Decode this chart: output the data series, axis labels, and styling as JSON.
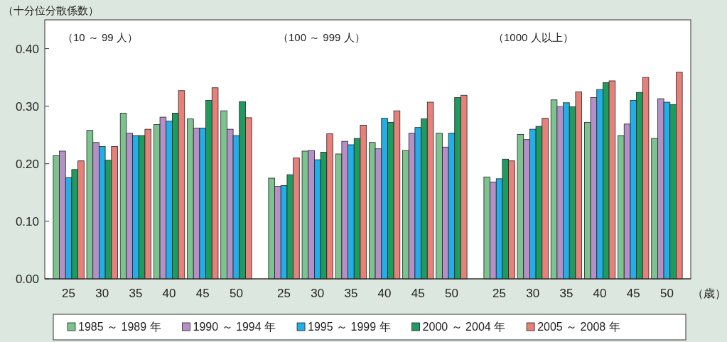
{
  "chart_data": [
    {
      "type": "bar",
      "title": "（10 ～ 99 人）",
      "ylabel": "（十分位分散係数）",
      "categories": [
        "25",
        "30",
        "35",
        "40",
        "45",
        "50"
      ],
      "ylim": [
        0,
        0.45
      ],
      "yticks": [
        {
          "value": 0,
          "label": "0.00"
        },
        {
          "value": 0.1,
          "label": "0.10"
        },
        {
          "value": 0.2,
          "label": "0.20"
        },
        {
          "value": 0.3,
          "label": "0.30"
        },
        {
          "value": 0.4,
          "label": "0.40"
        }
      ],
      "legend": "bottom",
      "series": [
        {
          "name": "1985 ～ 1989 年",
          "color": "#7cc38f",
          "values": [
            0.214,
            0.258,
            0.288,
            0.268,
            0.278,
            0.292
          ]
        },
        {
          "name": "1990 ～ 1994 年",
          "color": "#b68fc9",
          "values": [
            0.222,
            0.237,
            0.253,
            0.281,
            0.262,
            0.26
          ]
        },
        {
          "name": "1995 ～ 1999 年",
          "color": "#22aee6",
          "values": [
            0.176,
            0.23,
            0.249,
            0.274,
            0.262,
            0.249
          ]
        },
        {
          "name": "2000 ～ 2004 年",
          "color": "#1e9b5e",
          "values": [
            0.19,
            0.206,
            0.249,
            0.288,
            0.31,
            0.308
          ]
        },
        {
          "name": "2005 ～ 2008 年",
          "color": "#e8807a",
          "values": [
            0.205,
            0.23,
            0.26,
            0.327,
            0.332,
            0.28
          ]
        }
      ]
    },
    {
      "type": "bar",
      "title": "（100 ～ 999 人）",
      "categories": [
        "25",
        "30",
        "35",
        "40",
        "45",
        "50"
      ],
      "ylim": [
        0,
        0.45
      ],
      "tick_labels": "x",
      "series": [
        {
          "color": "#7cc38f",
          "values": [
            0.175,
            0.222,
            0.217,
            0.237,
            0.223,
            0.253
          ]
        },
        {
          "color": "#b68fc9",
          "values": [
            0.161,
            0.223,
            0.239,
            0.226,
            0.253,
            0.229
          ]
        },
        {
          "color": "#22aee6",
          "values": [
            0.162,
            0.207,
            0.233,
            0.279,
            0.263,
            0.253
          ]
        },
        {
          "color": "#1e9b5e",
          "values": [
            0.181,
            0.22,
            0.244,
            0.272,
            0.278,
            0.315
          ]
        },
        {
          "color": "#e8807a",
          "values": [
            0.21,
            0.252,
            0.267,
            0.292,
            0.307,
            0.319
          ]
        }
      ]
    },
    {
      "type": "bar",
      "title": "（1000 人以上）",
      "xlabel": "（歳）",
      "categories": [
        "25",
        "30",
        "35",
        "40",
        "45",
        "50"
      ],
      "ylim": [
        0,
        0.45
      ],
      "tick_labels": "x",
      "series": [
        {
          "color": "#7cc38f",
          "values": [
            0.177,
            0.251,
            0.311,
            0.272,
            0.249,
            0.244
          ]
        },
        {
          "color": "#b68fc9",
          "values": [
            0.168,
            0.242,
            0.299,
            0.315,
            0.269,
            0.313
          ]
        },
        {
          "color": "#22aee6",
          "values": [
            0.174,
            0.26,
            0.306,
            0.329,
            0.31,
            0.307
          ]
        },
        {
          "color": "#1e9b5e",
          "values": [
            0.208,
            0.265,
            0.299,
            0.341,
            0.324,
            0.303
          ]
        },
        {
          "color": "#e8807a",
          "values": [
            0.205,
            0.279,
            0.325,
            0.344,
            0.35,
            0.359
          ]
        }
      ]
    }
  ]
}
